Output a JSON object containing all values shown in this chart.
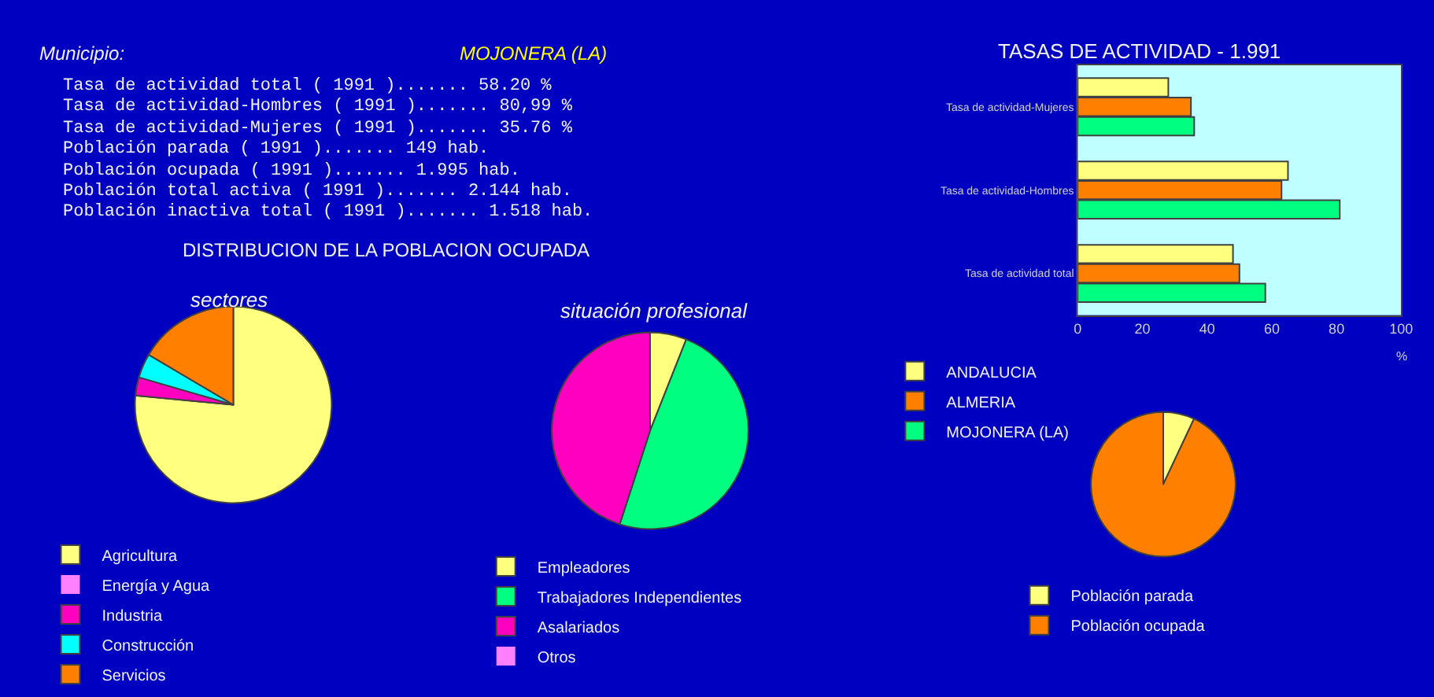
{
  "chart_data": [
    {
      "type": "other",
      "title": "Municipio:",
      "subtitle": "MOJONERA (LA)",
      "annotations": [
        "Tasa de actividad total ( 1991 )....... 58.20 %",
        "Tasa de actividad-Hombres ( 1991 )....... 80,99 %",
        "Tasa de actividad-Mujeres ( 1991 )....... 35.76 %",
        "Población parada ( 1991 )....... 149 hab.",
        "Población ocupada ( 1991 )....... 1.995 hab.",
        "Población total activa ( 1991 )....... 2.144 hab.",
        "Población inactiva total ( 1991 )....... 1.518 hab."
      ]
    },
    {
      "type": "pie",
      "title": "DISTRIBUCION DE LA POBLACION OCUPADA",
      "subtitle": "sectores",
      "legend": "bottom left",
      "categories": [
        "Agricultura",
        "Energía y Agua",
        "Industria",
        "Construcción",
        "Servicios"
      ],
      "values": [
        76.5,
        0,
        3,
        4,
        16.5
      ],
      "colors": [
        "#ffff80",
        "#ff80ff",
        "#ff00c0",
        "#00ffff",
        "#ff8000"
      ]
    },
    {
      "type": "pie",
      "title": "situación profesional",
      "legend": "bottom left",
      "categories": [
        "Empleadores",
        "Trabajadores Independientes",
        "Asalariados",
        "Otros"
      ],
      "values": [
        6,
        49,
        45,
        0
      ],
      "colors": [
        "#ffff80",
        "#00ff80",
        "#ff00c0",
        "#ff80ff"
      ]
    },
    {
      "type": "bar",
      "orientation": "horizontal",
      "title": "TASAS DE ACTIVIDAD - 1.991",
      "xlabel": "%",
      "legend": "bottom left",
      "categories": [
        "Tasa de actividad-Mujeres",
        "Tasa de actividad-Hombres",
        "Tasa de actividad total"
      ],
      "xlim": [
        0,
        100
      ],
      "xticks": [
        0,
        20,
        40,
        60,
        80,
        100
      ],
      "grid": false,
      "series": [
        {
          "name": "ANDALUCIA",
          "color": "#ffff80",
          "values": [
            28,
            65,
            48
          ]
        },
        {
          "name": "ALMERIA",
          "color": "#ff8000",
          "values": [
            35,
            63,
            50
          ]
        },
        {
          "name": "MOJONERA (LA)",
          "color": "#00ff80",
          "values": [
            36,
            81,
            58
          ]
        }
      ]
    },
    {
      "type": "pie",
      "legend": "bottom",
      "categories": [
        "Población parada",
        "Población ocupada"
      ],
      "values": [
        7,
        93
      ],
      "colors": [
        "#ffff80",
        "#ff8000"
      ]
    }
  ]
}
